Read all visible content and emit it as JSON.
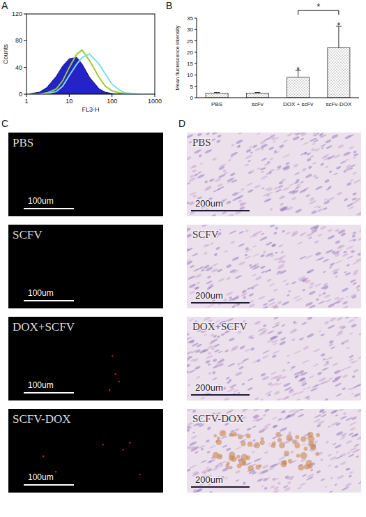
{
  "panel_letters": [
    "A",
    "B",
    "C",
    "D"
  ],
  "chart_data": [
    {
      "type": "line",
      "x_label": "FL3-H",
      "y_label": "Counts",
      "log": "x",
      "xlim": [
        1,
        1000
      ],
      "xticks": [
        1,
        10,
        100,
        1000
      ],
      "ylim": [
        0,
        120
      ],
      "yticks": [
        0,
        40,
        80,
        120
      ],
      "x": [
        1,
        2,
        3,
        5,
        7,
        10,
        15,
        20,
        30,
        50,
        70,
        100,
        150,
        200,
        300,
        500,
        1000
      ],
      "series": [
        {
          "type": "area",
          "color": "#2323c8",
          "values": [
            0,
            3,
            10,
            27,
            42,
            53,
            55,
            45,
            25,
            8,
            3,
            1,
            0,
            0,
            0,
            0,
            0
          ]
        },
        {
          "color": "#9acd32",
          "values": [
            0,
            0,
            2,
            8,
            20,
            40,
            60,
            66,
            50,
            25,
            12,
            5,
            2,
            1,
            0,
            0,
            0
          ]
        },
        {
          "color": "#7fdde8",
          "values": [
            0,
            0,
            1,
            4,
            12,
            28,
            45,
            55,
            60,
            45,
            30,
            15,
            6,
            2,
            1,
            0,
            0
          ]
        }
      ]
    },
    {
      "type": "bar",
      "y_label": "Mean fluorescence intensity",
      "categories": [
        "PBS",
        "scFv",
        "DOX + scFv",
        "scFv-DOX"
      ],
      "values": [
        2,
        2,
        9,
        22
      ],
      "errors": [
        0.3,
        0.3,
        3,
        9.5
      ],
      "color": "#ffffff",
      "ylim": [
        0,
        35
      ],
      "yticks": [
        0,
        5,
        10,
        15,
        20,
        25,
        30,
        35
      ],
      "annotations": [
        {
          "text": "*",
          "category": 2
        },
        {
          "text": "*",
          "category": 3
        },
        {
          "text": "*",
          "between": [
            2,
            3
          ]
        }
      ]
    }
  ],
  "images": [
    {
      "type": "fluorescence",
      "panels": [
        {
          "label": "PBS",
          "scale_bar": "100um"
        },
        {
          "label": "SCFV",
          "scale_bar": "100um"
        },
        {
          "label": "DOX+SCFV",
          "scale_bar": "100um"
        },
        {
          "label": "SCFV-DOX",
          "scale_bar": "100um"
        }
      ]
    },
    {
      "type": "histology",
      "panels": [
        {
          "label": "PBS",
          "scale_bar": "200um"
        },
        {
          "label": "SCFV",
          "scale_bar": "200um"
        },
        {
          "label": "DOX+SCFV",
          "scale_bar": "200um"
        },
        {
          "label": "SCFV-DOX",
          "scale_bar": "200um"
        }
      ]
    }
  ]
}
